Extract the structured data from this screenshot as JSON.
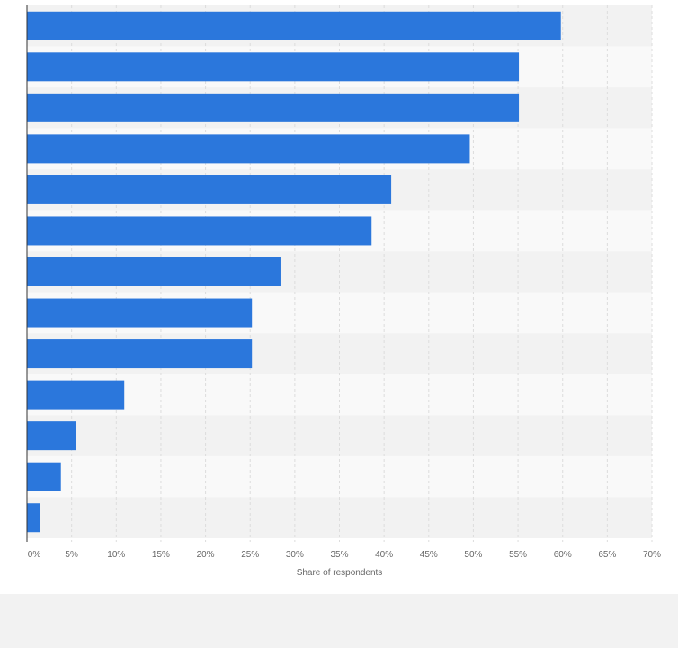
{
  "chart_data": {
    "type": "bar",
    "orientation": "horizontal",
    "categories": [
      "",
      "",
      "",
      "",
      "",
      "",
      "",
      "",
      "",
      "",
      "",
      "",
      ""
    ],
    "values": [
      59.8,
      55.1,
      55.1,
      49.6,
      40.8,
      38.6,
      28.4,
      25.2,
      25.2,
      10.9,
      5.5,
      3.8,
      1.5
    ],
    "xlabel": "Share of respondents",
    "ylabel": "",
    "xlim": [
      0,
      70
    ],
    "xticks": [
      0,
      5,
      10,
      15,
      20,
      25,
      30,
      35,
      40,
      45,
      50,
      55,
      60,
      65,
      70
    ],
    "xtick_labels": [
      "0%",
      "5%",
      "10%",
      "15%",
      "20%",
      "25%",
      "30%",
      "35%",
      "40%",
      "45%",
      "50%",
      "55%",
      "60%",
      "65%",
      "70%"
    ],
    "grid": true,
    "legend": "none"
  },
  "colors": {
    "bar": "#2b77dc",
    "band_dark": "#f2f2f2",
    "band_light": "#f9f9f9",
    "grid": "#dddddd",
    "axis": "#333333",
    "text": "#666666"
  }
}
